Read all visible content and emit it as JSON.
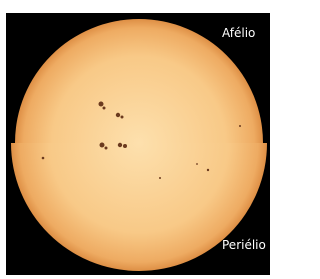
{
  "labels": {
    "aphelion": "Afélio",
    "perihelion": "Periélio"
  }
}
